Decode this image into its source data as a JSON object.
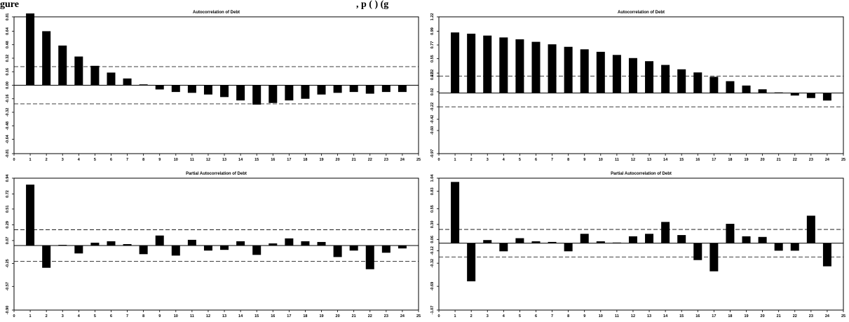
{
  "caption": {
    "left": "gure",
    "right": ", p            (  )                (g"
  },
  "chart_data": [
    {
      "type": "bar",
      "title": "Autocorrelation of Debt",
      "categories": [
        1,
        2,
        3,
        4,
        5,
        6,
        7,
        8,
        9,
        10,
        11,
        12,
        13,
        14,
        15,
        16,
        17,
        18,
        19,
        20,
        21,
        22,
        23,
        24
      ],
      "values": [
        0.85,
        0.64,
        0.47,
        0.34,
        0.23,
        0.15,
        0.08,
        0.01,
        -0.05,
        -0.08,
        -0.09,
        -0.11,
        -0.14,
        -0.18,
        -0.23,
        -0.21,
        -0.18,
        -0.16,
        -0.11,
        -0.09,
        -0.08,
        -0.1,
        -0.08,
        -0.08
      ],
      "confidence_bounds": [
        0.22,
        -0.22
      ],
      "xlim": [
        0,
        25
      ],
      "ylim": [
        -0.81,
        0.81
      ],
      "xticks": [
        "0",
        "1",
        "2",
        "3",
        "4",
        "5",
        "6",
        "7",
        "8",
        "9",
        "10",
        "11",
        "12",
        "13",
        "14",
        "15",
        "16",
        "17",
        "18",
        "19",
        "20",
        "21",
        "22",
        "23",
        "24",
        "25"
      ],
      "yticks": [
        {
          "v": 0.81,
          "label": "0.81"
        },
        {
          "v": 0.64,
          "label": "0.64"
        },
        {
          "v": 0.48,
          "label": "0.48"
        },
        {
          "v": 0.32,
          "label": "0.32"
        },
        {
          "v": 0.16,
          "label": "0.16"
        },
        {
          "v": 0.0,
          "label": "0.00"
        },
        {
          "v": -0.16,
          "label": "-0.16"
        },
        {
          "v": -0.32,
          "label": "-0.32"
        },
        {
          "v": -0.48,
          "label": "-0.48"
        },
        {
          "v": -0.64,
          "label": "-0.64"
        },
        {
          "v": -0.81,
          "label": "-0.81"
        }
      ]
    },
    {
      "type": "bar",
      "title": "Autocorrelation of Debt",
      "categories": [
        1,
        2,
        3,
        4,
        5,
        6,
        7,
        8,
        9,
        10,
        11,
        12,
        13,
        14,
        15,
        16,
        17,
        18,
        19,
        20,
        21,
        22,
        23,
        24
      ],
      "values": [
        0.97,
        0.95,
        0.92,
        0.89,
        0.86,
        0.82,
        0.78,
        0.74,
        0.7,
        0.66,
        0.61,
        0.56,
        0.51,
        0.45,
        0.38,
        0.33,
        0.26,
        0.19,
        0.12,
        0.06,
        0.01,
        -0.04,
        -0.08,
        -0.12
      ],
      "confidence_bounds": [
        0.27,
        -0.22
      ],
      "xlim": [
        0,
        25
      ],
      "ylim": [
        -0.97,
        1.22
      ],
      "xticks": [
        "0",
        "1",
        "2",
        "3",
        "4",
        "5",
        "6",
        "7",
        "8",
        "9",
        "10",
        "11",
        "12",
        "13",
        "14",
        "15",
        "16",
        "17",
        "18",
        "19",
        "20",
        "21",
        "22",
        "23",
        "24",
        "25"
      ],
      "yticks": [
        {
          "v": 1.22,
          "label": "1.22"
        },
        {
          "v": 0.99,
          "label": "0.99"
        },
        {
          "v": 0.77,
          "label": "0.77"
        },
        {
          "v": 0.55,
          "label": "0.55"
        },
        {
          "v": 0.32,
          "label": "0.32"
        },
        {
          "v": 0.27,
          "label": "0.27"
        },
        {
          "v": 0.02,
          "label": "0.02"
        },
        {
          "v": -0.22,
          "label": "-0.22"
        },
        {
          "v": -0.42,
          "label": "-0.42"
        },
        {
          "v": -0.6,
          "label": "-0.60"
        },
        {
          "v": -0.97,
          "label": "-0.97"
        }
      ]
    },
    {
      "type": "bar",
      "title": "Partial Autocorrelation of Debt",
      "categories": [
        1,
        2,
        3,
        4,
        5,
        6,
        7,
        8,
        9,
        10,
        11,
        12,
        13,
        14,
        15,
        16,
        17,
        18,
        19,
        20,
        21,
        22,
        23,
        24
      ],
      "values": [
        0.85,
        -0.31,
        0.01,
        -0.11,
        0.04,
        0.06,
        0.02,
        -0.12,
        0.14,
        -0.14,
        0.08,
        -0.07,
        -0.06,
        0.06,
        -0.13,
        0.03,
        0.1,
        0.06,
        0.05,
        -0.16,
        -0.07,
        -0.33,
        -0.1,
        -0.04
      ],
      "confidence_bounds": [
        0.22,
        -0.22
      ],
      "xlim": [
        0,
        25
      ],
      "ylim": [
        -0.9,
        0.94
      ],
      "xticks": [
        "0",
        "1",
        "2",
        "3",
        "4",
        "5",
        "6",
        "7",
        "8",
        "9",
        "10",
        "11",
        "12",
        "13",
        "14",
        "15",
        "16",
        "17",
        "18",
        "19",
        "20",
        "21",
        "22",
        "23",
        "24",
        "25"
      ],
      "yticks": [
        {
          "v": 0.94,
          "label": "0.94"
        },
        {
          "v": 0.72,
          "label": "0.72"
        },
        {
          "v": 0.51,
          "label": "0.51"
        },
        {
          "v": 0.29,
          "label": "0.29"
        },
        {
          "v": 0.07,
          "label": "0.07"
        },
        {
          "v": -0.25,
          "label": "-0.25"
        },
        {
          "v": -0.57,
          "label": "-0.57"
        },
        {
          "v": -0.9,
          "label": "-0.90"
        }
      ]
    },
    {
      "type": "bar",
      "title": "Partial Autocorrelation of Debt",
      "categories": [
        1,
        2,
        3,
        4,
        5,
        6,
        7,
        8,
        9,
        10,
        11,
        12,
        13,
        14,
        15,
        16,
        17,
        18,
        19,
        20,
        21,
        22,
        23,
        24
      ],
      "values": [
        0.98,
        -0.61,
        0.05,
        -0.13,
        0.08,
        0.03,
        0.02,
        -0.13,
        0.15,
        0.03,
        0.01,
        0.11,
        0.15,
        0.34,
        0.13,
        -0.27,
        -0.45,
        0.31,
        0.11,
        0.1,
        -0.12,
        -0.12,
        0.44,
        -0.37
      ],
      "confidence_bounds": [
        0.22,
        -0.22
      ],
      "xlim": [
        0,
        25
      ],
      "ylim": [
        -1.07,
        1.04
      ],
      "xticks": [
        "0",
        "1",
        "2",
        "3",
        "4",
        "5",
        "6",
        "7",
        "8",
        "9",
        "10",
        "11",
        "12",
        "13",
        "14",
        "15",
        "16",
        "17",
        "18",
        "19",
        "20",
        "21",
        "22",
        "23",
        "24",
        "25"
      ],
      "yticks": [
        {
          "v": 1.04,
          "label": "1.04"
        },
        {
          "v": 0.83,
          "label": "0.83"
        },
        {
          "v": 0.55,
          "label": "0.55"
        },
        {
          "v": 0.3,
          "label": "0.30"
        },
        {
          "v": 0.06,
          "label": "0.06"
        },
        {
          "v": -0.12,
          "label": "-0.12"
        },
        {
          "v": -0.32,
          "label": "-0.32"
        },
        {
          "v": -0.69,
          "label": "-0.69"
        },
        {
          "v": -1.07,
          "label": "-1.07"
        }
      ]
    }
  ]
}
